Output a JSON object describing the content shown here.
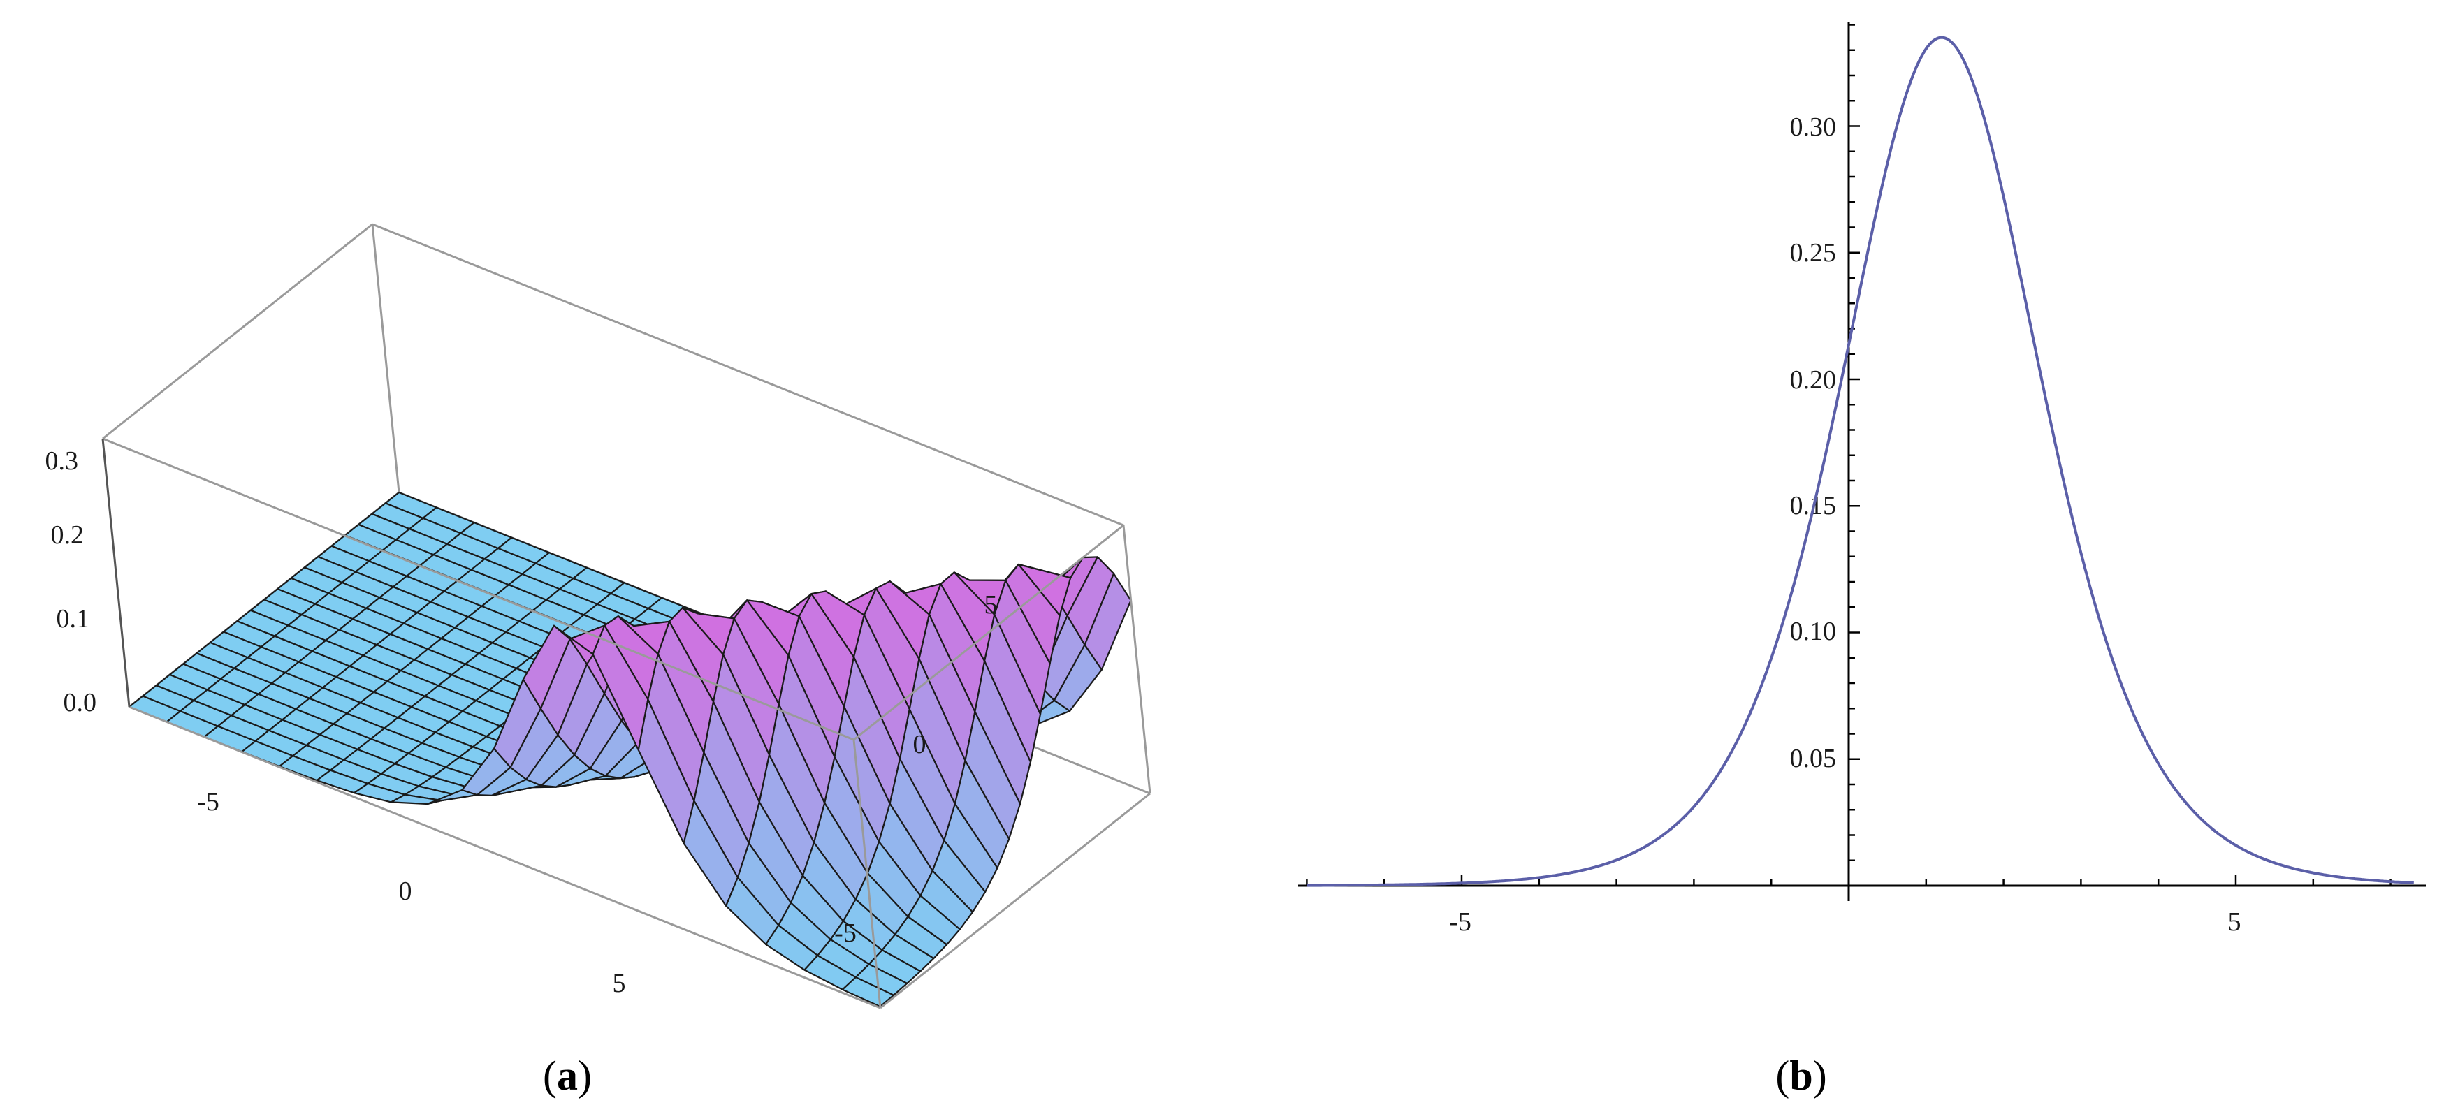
{
  "panels": [
    {
      "id": "a",
      "caption_open": "(",
      "caption_letter": "a",
      "caption_close": ")"
    },
    {
      "id": "b",
      "caption_open": "(",
      "caption_letter": "b",
      "caption_close": ")"
    }
  ],
  "chart_data": [
    {
      "type": "surface",
      "title": "",
      "xlabel": "",
      "ylabel": "",
      "zlabel": "",
      "x_ticks": [
        "-5",
        "0",
        "5"
      ],
      "y_ticks": [
        "-5",
        "0",
        "5"
      ],
      "z_ticks": [
        "0.0",
        "0.1",
        "0.2",
        "0.3"
      ],
      "xlim": [
        -7,
        7
      ],
      "ylim": [
        -7,
        7
      ],
      "zlim": [
        0,
        0.33
      ],
      "colors": {
        "low": "#7fcdf2",
        "high": "#d26ee0",
        "ridge_top": "#46c6ee",
        "mesh": "#111111",
        "box": "#999999"
      }
    },
    {
      "type": "line",
      "title": "",
      "xlabel": "",
      "ylabel": "",
      "x_ticks": [
        "-5",
        "5"
      ],
      "y_ticks": [
        "0.05",
        "0.10",
        "0.15",
        "0.20",
        "0.25",
        "0.30"
      ],
      "xlim": [
        -7,
        7.3
      ],
      "ylim": [
        0,
        0.35
      ],
      "peak": {
        "x": 1.2,
        "y": 0.335
      },
      "series": [
        {
          "color": "#5b5fa8"
        }
      ]
    }
  ]
}
